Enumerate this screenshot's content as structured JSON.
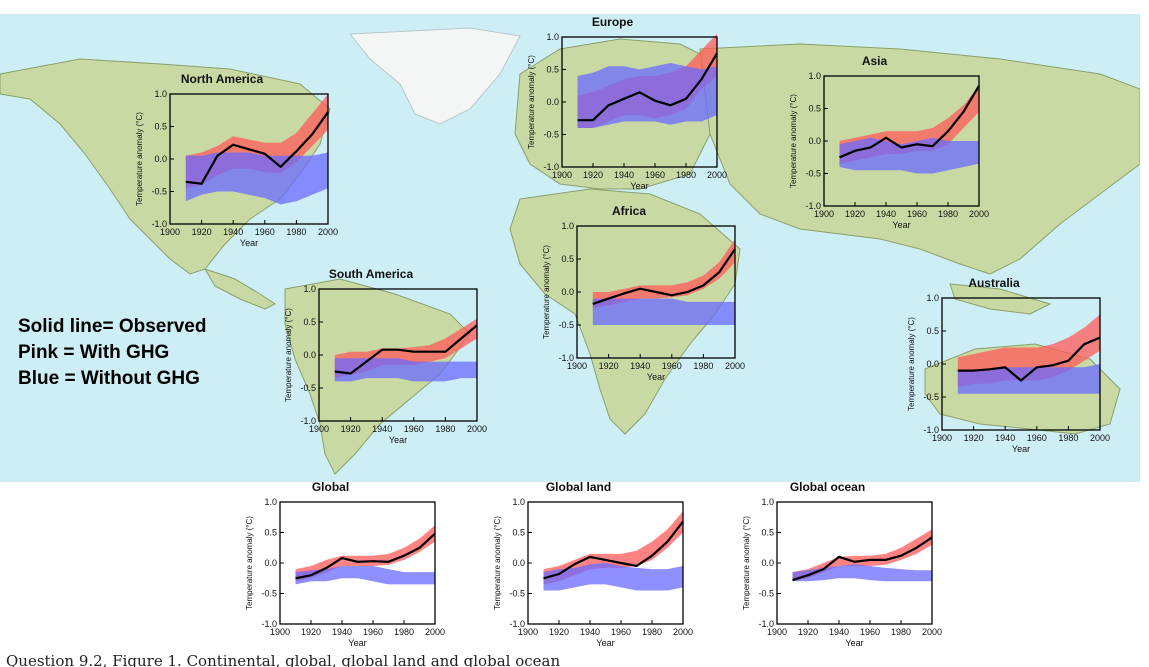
{
  "legend": {
    "observed": "Solid line= Observed",
    "with_ghg": "Pink = With GHG",
    "without_ghg": "Blue = Without GHG"
  },
  "caption": "Question 9.2, Figure 1. Continental, global, global land and global ocean",
  "colors": {
    "ocean": "#cdeef5",
    "land": "#c9d9a4",
    "ice": "#f4f6f6",
    "with_ghg": "#ff5a5a",
    "without_ghg": "#6a6aff",
    "observed": "#000000"
  },
  "chart_data": [
    {
      "id": "north-america",
      "type": "line",
      "title": "North America",
      "xlabel": "Year",
      "ylabel": "Temperature anomaly (°C)",
      "xlim": [
        1900,
        2000
      ],
      "ylim": [
        -1.0,
        1.0
      ],
      "xticks": [
        1900,
        1920,
        1940,
        1960,
        1980,
        2000
      ],
      "yticks": [
        -1.0,
        -0.5,
        0.0,
        0.5,
        1.0
      ],
      "x": [
        1910,
        1920,
        1930,
        1940,
        1950,
        1960,
        1970,
        1980,
        1990,
        2000
      ],
      "observed": [
        -0.35,
        -0.38,
        0.05,
        0.22,
        0.15,
        0.08,
        -0.12,
        0.12,
        0.38,
        0.72
      ],
      "with_ghg_low": [
        -0.45,
        -0.4,
        -0.25,
        -0.15,
        -0.15,
        -0.2,
        -0.22,
        -0.05,
        0.2,
        0.45
      ],
      "with_ghg_high": [
        0.05,
        0.1,
        0.2,
        0.35,
        0.3,
        0.25,
        0.25,
        0.4,
        0.7,
        1.0
      ],
      "without_ghg_low": [
        -0.65,
        -0.55,
        -0.5,
        -0.5,
        -0.55,
        -0.6,
        -0.7,
        -0.65,
        -0.55,
        -0.45
      ],
      "without_ghg_high": [
        0.05,
        0.05,
        0.1,
        0.1,
        0.1,
        0.05,
        0.05,
        0.05,
        0.05,
        0.1
      ]
    },
    {
      "id": "europe",
      "type": "line",
      "title": "Europe",
      "xlabel": "Year",
      "ylabel": "Temperature anomaly (°C)",
      "xlim": [
        1900,
        2000
      ],
      "ylim": [
        -1.0,
        1.0
      ],
      "xticks": [
        1900,
        1920,
        1940,
        1960,
        1980,
        2000
      ],
      "yticks": [
        -1.0,
        -0.5,
        0.0,
        0.5,
        1.0
      ],
      "x": [
        1910,
        1920,
        1930,
        1940,
        1950,
        1960,
        1970,
        1980,
        1990,
        2000
      ],
      "observed": [
        -0.28,
        -0.28,
        -0.05,
        0.05,
        0.15,
        0.02,
        -0.05,
        0.05,
        0.35,
        0.75
      ],
      "with_ghg_low": [
        -0.4,
        -0.4,
        -0.3,
        -0.2,
        -0.2,
        -0.25,
        -0.2,
        -0.1,
        0.2,
        0.4
      ],
      "with_ghg_high": [
        0.1,
        0.15,
        0.25,
        0.35,
        0.4,
        0.4,
        0.45,
        0.55,
        0.8,
        1.05
      ],
      "without_ghg_low": [
        -0.4,
        -0.4,
        -0.35,
        -0.3,
        -0.3,
        -0.3,
        -0.35,
        -0.3,
        -0.3,
        -0.2
      ],
      "without_ghg_high": [
        0.4,
        0.45,
        0.55,
        0.55,
        0.5,
        0.55,
        0.6,
        0.55,
        0.5,
        0.55
      ]
    },
    {
      "id": "asia",
      "type": "line",
      "title": "Asia",
      "xlabel": "Year",
      "ylabel": "Temperature anomaly (°C)",
      "xlim": [
        1900,
        2000
      ],
      "ylim": [
        -1.0,
        1.0
      ],
      "xticks": [
        1900,
        1920,
        1940,
        1960,
        1980,
        2000
      ],
      "yticks": [
        -1.0,
        -0.5,
        0.0,
        0.5,
        1.0
      ],
      "x": [
        1910,
        1920,
        1930,
        1940,
        1950,
        1960,
        1970,
        1980,
        1990,
        2000
      ],
      "observed": [
        -0.25,
        -0.15,
        -0.1,
        0.05,
        -0.1,
        -0.05,
        -0.08,
        0.15,
        0.45,
        0.85
      ],
      "with_ghg_low": [
        -0.35,
        -0.3,
        -0.25,
        -0.2,
        -0.2,
        -0.15,
        -0.15,
        -0.05,
        0.2,
        0.45
      ],
      "with_ghg_high": [
        0.0,
        0.05,
        0.1,
        0.15,
        0.15,
        0.15,
        0.2,
        0.35,
        0.55,
        0.85
      ],
      "without_ghg_low": [
        -0.4,
        -0.45,
        -0.45,
        -0.45,
        -0.45,
        -0.5,
        -0.5,
        -0.45,
        -0.4,
        -0.35
      ],
      "without_ghg_high": [
        -0.05,
        0.0,
        0.05,
        0.0,
        -0.05,
        0.0,
        0.05,
        0.0,
        0.0,
        0.0
      ]
    },
    {
      "id": "africa",
      "type": "line",
      "title": "Africa",
      "xlabel": "Year",
      "ylabel": "Temperature anomaly (°C)",
      "xlim": [
        1900,
        2000
      ],
      "ylim": [
        -1.0,
        1.0
      ],
      "xticks": [
        1900,
        1920,
        1940,
        1960,
        1980,
        2000
      ],
      "yticks": [
        -1.0,
        -0.5,
        0.0,
        0.5,
        1.0
      ],
      "x": [
        1910,
        1920,
        1930,
        1940,
        1950,
        1960,
        1970,
        1980,
        1990,
        2000
      ],
      "observed": [
        -0.18,
        -0.1,
        -0.02,
        0.05,
        0.0,
        -0.05,
        0.0,
        0.1,
        0.3,
        0.65
      ],
      "with_ghg_low": [
        -0.25,
        -0.2,
        -0.15,
        -0.1,
        -0.1,
        -0.08,
        -0.05,
        0.05,
        0.2,
        0.45
      ],
      "with_ghg_high": [
        0.0,
        0.0,
        0.05,
        0.1,
        0.1,
        0.1,
        0.15,
        0.25,
        0.45,
        0.8
      ],
      "without_ghg_low": [
        -0.5,
        -0.5,
        -0.5,
        -0.5,
        -0.5,
        -0.5,
        -0.5,
        -0.5,
        -0.5,
        -0.5
      ],
      "without_ghg_high": [
        -0.1,
        -0.1,
        -0.1,
        -0.1,
        -0.1,
        -0.1,
        -0.15,
        -0.15,
        -0.15,
        -0.15
      ]
    },
    {
      "id": "south-america",
      "type": "line",
      "title": "South America",
      "xlabel": "Year",
      "ylabel": "Temperature anomaly (°C)",
      "xlim": [
        1900,
        2000
      ],
      "ylim": [
        -1.0,
        1.0
      ],
      "xticks": [
        1900,
        1920,
        1940,
        1960,
        1980,
        2000
      ],
      "yticks": [
        -1.0,
        -0.5,
        0.0,
        0.5,
        1.0
      ],
      "x": [
        1910,
        1920,
        1930,
        1940,
        1950,
        1960,
        1970,
        1980,
        1990,
        2000
      ],
      "observed": [
        -0.25,
        -0.28,
        -0.1,
        0.08,
        0.08,
        0.05,
        0.05,
        0.05,
        0.25,
        0.45
      ],
      "with_ghg_low": [
        -0.35,
        -0.3,
        -0.25,
        -0.15,
        -0.15,
        -0.15,
        -0.1,
        -0.05,
        0.1,
        0.25
      ],
      "with_ghg_high": [
        0.0,
        0.05,
        0.05,
        0.1,
        0.1,
        0.12,
        0.15,
        0.25,
        0.4,
        0.55
      ],
      "without_ghg_low": [
        -0.4,
        -0.4,
        -0.35,
        -0.35,
        -0.35,
        -0.4,
        -0.4,
        -0.4,
        -0.35,
        -0.35
      ],
      "without_ghg_high": [
        -0.05,
        -0.05,
        -0.05,
        -0.05,
        -0.05,
        -0.1,
        -0.1,
        -0.1,
        -0.1,
        -0.1
      ]
    },
    {
      "id": "australia",
      "type": "line",
      "title": "Australia",
      "xlabel": "Year",
      "ylabel": "Temperature anomaly (°C)",
      "xlim": [
        1900,
        2000
      ],
      "ylim": [
        -1.0,
        1.0
      ],
      "xticks": [
        1900,
        1920,
        1940,
        1960,
        1980,
        2000
      ],
      "yticks": [
        -1.0,
        -0.5,
        0.0,
        0.5,
        1.0
      ],
      "x": [
        1910,
        1920,
        1930,
        1940,
        1950,
        1960,
        1970,
        1980,
        1990,
        2000
      ],
      "observed": [
        -0.1,
        -0.1,
        -0.08,
        -0.05,
        -0.25,
        -0.05,
        -0.02,
        0.05,
        0.3,
        0.4
      ],
      "with_ghg_low": [
        -0.35,
        -0.3,
        -0.3,
        -0.25,
        -0.25,
        -0.25,
        -0.2,
        -0.1,
        0.05,
        0.2
      ],
      "with_ghg_high": [
        0.1,
        0.15,
        0.2,
        0.25,
        0.25,
        0.25,
        0.3,
        0.4,
        0.55,
        0.75
      ],
      "without_ghg_low": [
        -0.45,
        -0.45,
        -0.45,
        -0.45,
        -0.45,
        -0.45,
        -0.45,
        -0.45,
        -0.45,
        -0.45
      ],
      "without_ghg_high": [
        -0.1,
        -0.1,
        -0.1,
        -0.05,
        -0.05,
        -0.05,
        -0.05,
        -0.05,
        -0.05,
        0.0
      ]
    },
    {
      "id": "global",
      "type": "line",
      "title": "Global",
      "xlabel": "Year",
      "ylabel": "Temperature anomaly (°C)",
      "xlim": [
        1900,
        2000
      ],
      "ylim": [
        -1.0,
        1.0
      ],
      "xticks": [
        1900,
        1920,
        1940,
        1960,
        1980,
        2000
      ],
      "yticks": [
        -1.0,
        -0.5,
        0.0,
        0.5,
        1.0
      ],
      "x": [
        1910,
        1920,
        1930,
        1940,
        1950,
        1960,
        1970,
        1980,
        1990,
        2000
      ],
      "observed": [
        -0.25,
        -0.2,
        -0.08,
        0.08,
        0.02,
        0.03,
        0.02,
        0.12,
        0.25,
        0.48
      ],
      "with_ghg_low": [
        -0.3,
        -0.25,
        -0.15,
        -0.05,
        -0.05,
        -0.05,
        -0.03,
        0.05,
        0.18,
        0.35
      ],
      "with_ghg_high": [
        -0.1,
        -0.05,
        0.05,
        0.12,
        0.12,
        0.12,
        0.15,
        0.25,
        0.4,
        0.62
      ],
      "without_ghg_low": [
        -0.35,
        -0.3,
        -0.3,
        -0.25,
        -0.25,
        -0.3,
        -0.35,
        -0.35,
        -0.35,
        -0.35
      ],
      "without_ghg_high": [
        -0.15,
        -0.12,
        -0.1,
        -0.05,
        -0.05,
        -0.05,
        -0.1,
        -0.15,
        -0.15,
        -0.15
      ]
    },
    {
      "id": "global-land",
      "type": "line",
      "title": "Global land",
      "xlabel": "Year",
      "ylabel": "Temperature anomaly (°C)",
      "xlim": [
        1900,
        2000
      ],
      "ylim": [
        -1.0,
        1.0
      ],
      "xticks": [
        1900,
        1920,
        1940,
        1960,
        1980,
        2000
      ],
      "yticks": [
        -1.0,
        -0.5,
        0.0,
        0.5,
        1.0
      ],
      "x": [
        1910,
        1920,
        1930,
        1940,
        1950,
        1960,
        1970,
        1980,
        1990,
        2000
      ],
      "observed": [
        -0.25,
        -0.18,
        -0.02,
        0.1,
        0.05,
        0.0,
        -0.05,
        0.12,
        0.35,
        0.68
      ],
      "with_ghg_low": [
        -0.35,
        -0.3,
        -0.2,
        -0.1,
        -0.08,
        -0.08,
        -0.05,
        0.05,
        0.25,
        0.5
      ],
      "with_ghg_high": [
        -0.1,
        -0.05,
        0.05,
        0.15,
        0.15,
        0.15,
        0.2,
        0.35,
        0.55,
        0.85
      ],
      "without_ghg_low": [
        -0.45,
        -0.45,
        -0.4,
        -0.35,
        -0.35,
        -0.4,
        -0.45,
        -0.45,
        -0.45,
        -0.4
      ],
      "without_ghg_high": [
        -0.15,
        -0.1,
        -0.08,
        -0.02,
        0.0,
        -0.05,
        -0.08,
        -0.1,
        -0.1,
        -0.05
      ]
    },
    {
      "id": "global-ocean",
      "type": "line",
      "title": "Global ocean",
      "xlabel": "Year",
      "ylabel": "Temperature anomaly (°C)",
      "xlim": [
        1900,
        2000
      ],
      "ylim": [
        -1.0,
        1.0
      ],
      "xticks": [
        1900,
        1920,
        1940,
        1960,
        1980,
        2000
      ],
      "yticks": [
        -1.0,
        -0.5,
        0.0,
        0.5,
        1.0
      ],
      "x": [
        1910,
        1920,
        1930,
        1940,
        1950,
        1960,
        1970,
        1980,
        1990,
        2000
      ],
      "observed": [
        -0.28,
        -0.2,
        -0.1,
        0.1,
        0.02,
        0.05,
        0.05,
        0.12,
        0.25,
        0.42
      ],
      "with_ghg_low": [
        -0.3,
        -0.25,
        -0.15,
        -0.05,
        -0.05,
        -0.05,
        -0.03,
        0.05,
        0.15,
        0.3
      ],
      "with_ghg_high": [
        -0.15,
        -0.1,
        0.0,
        0.1,
        0.12,
        0.12,
        0.15,
        0.25,
        0.4,
        0.55
      ],
      "without_ghg_low": [
        -0.3,
        -0.3,
        -0.28,
        -0.25,
        -0.25,
        -0.28,
        -0.3,
        -0.3,
        -0.3,
        -0.3
      ],
      "without_ghg_high": [
        -0.15,
        -0.12,
        -0.08,
        -0.05,
        -0.02,
        -0.05,
        -0.08,
        -0.1,
        -0.12,
        -0.12
      ]
    }
  ]
}
